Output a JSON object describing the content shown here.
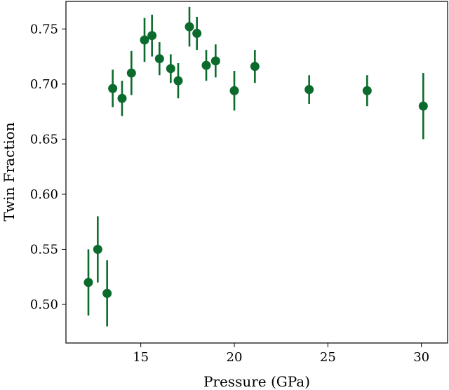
{
  "chart_data": {
    "type": "scatter",
    "title": "",
    "xlabel": "Pressure (GPa)",
    "ylabel": "Twin Fraction",
    "xlim": [
      11.0,
      31.4
    ],
    "ylim": [
      0.465,
      0.775
    ],
    "xticks": [
      15,
      20,
      25,
      30
    ],
    "yticks": [
      0.5,
      0.55,
      0.6,
      0.65,
      0.7,
      0.75
    ],
    "xtick_labels": [
      "15",
      "20",
      "25",
      "30"
    ],
    "ytick_labels": [
      "0.50",
      "0.55",
      "0.60",
      "0.65",
      "0.70",
      "0.75"
    ],
    "grid": false,
    "marker_color": "#0b6b2c",
    "series": [
      {
        "points": [
          {
            "x": 12.2,
            "y": 0.52,
            "err": 0.03
          },
          {
            "x": 12.7,
            "y": 0.55,
            "err": 0.03
          },
          {
            "x": 13.2,
            "y": 0.51,
            "err": 0.03
          },
          {
            "x": 13.5,
            "y": 0.696,
            "err": 0.017
          },
          {
            "x": 14.0,
            "y": 0.687,
            "err": 0.016
          },
          {
            "x": 14.5,
            "y": 0.71,
            "err": 0.02
          },
          {
            "x": 15.2,
            "y": 0.74,
            "err": 0.02
          },
          {
            "x": 15.6,
            "y": 0.744,
            "err": 0.019
          },
          {
            "x": 16.0,
            "y": 0.723,
            "err": 0.015
          },
          {
            "x": 16.6,
            "y": 0.714,
            "err": 0.013
          },
          {
            "x": 17.0,
            "y": 0.703,
            "err": 0.016
          },
          {
            "x": 17.6,
            "y": 0.752,
            "err": 0.018
          },
          {
            "x": 18.0,
            "y": 0.746,
            "err": 0.015
          },
          {
            "x": 18.5,
            "y": 0.717,
            "err": 0.014
          },
          {
            "x": 19.0,
            "y": 0.721,
            "err": 0.015
          },
          {
            "x": 20.0,
            "y": 0.694,
            "err": 0.018
          },
          {
            "x": 21.1,
            "y": 0.716,
            "err": 0.015
          },
          {
            "x": 24.0,
            "y": 0.695,
            "err": 0.013
          },
          {
            "x": 27.1,
            "y": 0.694,
            "err": 0.014
          },
          {
            "x": 30.1,
            "y": 0.68,
            "err": 0.03
          }
        ]
      }
    ]
  }
}
